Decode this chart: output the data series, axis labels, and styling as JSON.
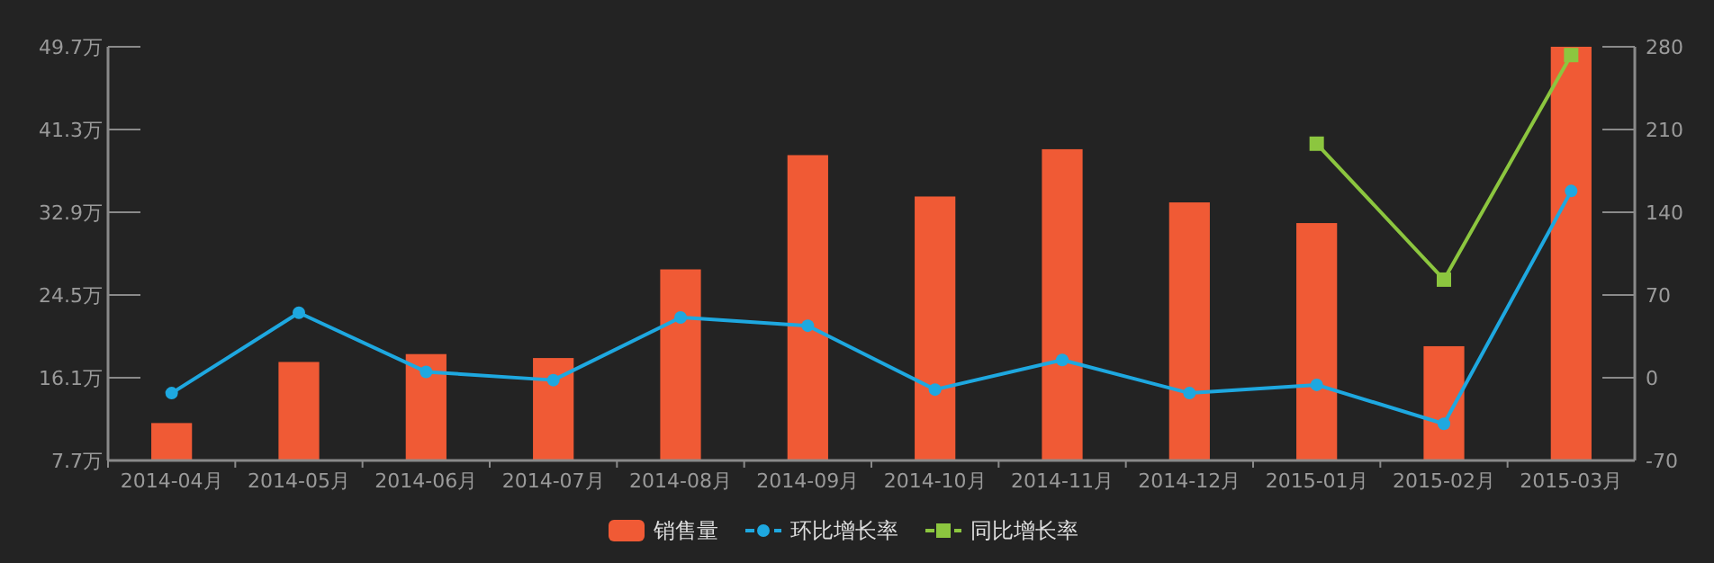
{
  "chart_data": {
    "type": "bar",
    "categories": [
      "2014-04月",
      "2014-05月",
      "2014-06月",
      "2014-07月",
      "2014-08月",
      "2014-09月",
      "2014-10月",
      "2014-11月",
      "2014-12月",
      "2015-01月",
      "2015-02月",
      "2015-03月"
    ],
    "series": [
      {
        "name": "销售量",
        "color": "#f05a35",
        "values": [
          11.5,
          17.7,
          18.5,
          18.1,
          27.1,
          38.7,
          34.5,
          39.3,
          33.9,
          31.8,
          19.3,
          49.7
        ]
      },
      {
        "name": "环比增长率",
        "type": "line",
        "axis": "y2",
        "color": "#1ea8e0",
        "values": [
          -13,
          55,
          5,
          -2,
          51,
          44,
          -10,
          15,
          -13,
          -6,
          -39,
          158
        ]
      },
      {
        "name": "同比增长率",
        "type": "line",
        "axis": "y2",
        "color": "#8cc63f",
        "marker": "square",
        "values": [
          null,
          null,
          null,
          null,
          null,
          null,
          null,
          null,
          null,
          198,
          83,
          273
        ]
      }
    ],
    "marker": "circle",
    "line_style": "solid",
    "ylim": [
      7.7,
      49.7
    ],
    "yticks": [
      {
        "value": 7.7,
        "label": "7.7万"
      },
      {
        "value": 16.1,
        "label": "16.1万"
      },
      {
        "value": 24.5,
        "label": "24.5万"
      },
      {
        "value": 32.9,
        "label": "32.9万"
      },
      {
        "value": 41.3,
        "label": "41.3万"
      },
      {
        "value": 49.7,
        "label": "49.7万"
      }
    ],
    "y2lim": [
      -70,
      280
    ],
    "y2ticks": [
      -70,
      0,
      70,
      140,
      210,
      280
    ],
    "grid": false,
    "legend": "bottom"
  }
}
